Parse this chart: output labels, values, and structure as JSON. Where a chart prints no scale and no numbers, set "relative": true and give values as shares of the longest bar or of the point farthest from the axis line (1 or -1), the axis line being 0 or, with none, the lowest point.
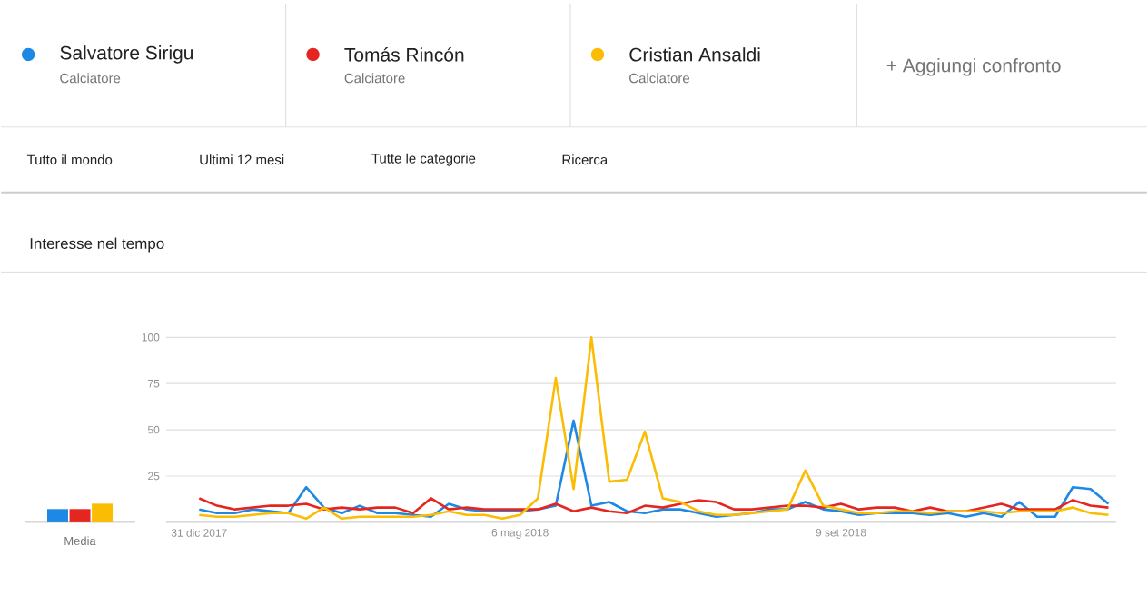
{
  "chart_data": [
    {
      "type": "bar",
      "relative": true,
      "categories": [
        "Media"
      ],
      "series": [
        {
          "color": "#1e88e5",
          "values": [
            0.71
          ]
        },
        {
          "color": "#e52620",
          "values": [
            0.71
          ]
        },
        {
          "color": "#fbbc04",
          "values": [
            1
          ]
        }
      ]
    },
    {
      "type": "line",
      "title": "Interesse nel tempo",
      "legend": "top",
      "grid": "y",
      "marker": "none",
      "line_style": "solid",
      "x": [
        "2017-12-31",
        "2018-01-07",
        "2018-01-14",
        "2018-01-21",
        "2018-01-28",
        "2018-02-04",
        "2018-02-11",
        "2018-02-18",
        "2018-02-25",
        "2018-03-04",
        "2018-03-11",
        "2018-03-18",
        "2018-03-25",
        "2018-04-01",
        "2018-04-08",
        "2018-04-15",
        "2018-04-22",
        "2018-04-29",
        "2018-05-06",
        "2018-05-13",
        "2018-05-20",
        "2018-05-27",
        "2018-06-03",
        "2018-06-10",
        "2018-06-17",
        "2018-06-24",
        "2018-07-01",
        "2018-07-08",
        "2018-07-15",
        "2018-07-22",
        "2018-07-29",
        "2018-08-05",
        "2018-08-12",
        "2018-08-19",
        "2018-08-26",
        "2018-09-02",
        "2018-09-09",
        "2018-09-16",
        "2018-09-23",
        "2018-09-30",
        "2018-10-07",
        "2018-10-14",
        "2018-10-21",
        "2018-10-28",
        "2018-11-04",
        "2018-11-11",
        "2018-11-18",
        "2018-11-25",
        "2018-12-02",
        "2018-12-09",
        "2018-12-16",
        "2018-12-23"
      ],
      "xlim": [
        "2017-12-18",
        "2018-12-26"
      ],
      "xticks": [
        {
          "value": "2017-12-31",
          "label": "31 dic 2017"
        },
        {
          "value": "2018-05-06",
          "label": "6 mag 2018"
        },
        {
          "value": "2018-09-09",
          "label": "9 set 2018"
        }
      ],
      "ylim": [
        0,
        100
      ],
      "yticks": [
        25,
        50,
        75,
        100
      ],
      "series": [
        {
          "name": "Salvatore Sirigu",
          "color": "#1e88e5",
          "values": [
            7,
            5,
            5,
            7,
            6,
            5,
            19,
            8,
            5,
            9,
            5,
            5,
            4,
            3,
            10,
            7,
            6,
            6,
            6,
            7,
            9,
            55,
            9,
            11,
            6,
            5,
            7,
            7,
            5,
            3,
            4,
            5,
            7,
            7,
            11,
            7,
            6,
            4,
            5,
            5,
            5,
            4,
            5,
            3,
            5,
            3,
            11,
            3,
            3,
            19,
            18,
            10
          ]
        },
        {
          "name": "Tomás Rincón",
          "color": "#e52620",
          "values": [
            13,
            9,
            7,
            8,
            9,
            9,
            10,
            7,
            8,
            7,
            8,
            8,
            5,
            13,
            7,
            8,
            7,
            7,
            7,
            7,
            10,
            6,
            8,
            6,
            5,
            9,
            8,
            10,
            12,
            11,
            7,
            7,
            8,
            9,
            9,
            8,
            10,
            7,
            8,
            8,
            6,
            8,
            6,
            6,
            8,
            10,
            7,
            7,
            7,
            12,
            9,
            8
          ]
        },
        {
          "name": "Cristian Ansaldi",
          "color": "#fbbc04",
          "values": [
            4,
            3,
            3,
            4,
            5,
            5,
            2,
            8,
            2,
            3,
            3,
            3,
            3,
            4,
            6,
            4,
            4,
            2,
            4,
            13,
            78,
            18,
            100,
            22,
            23,
            49,
            13,
            11,
            6,
            4,
            4,
            5,
            6,
            7,
            28,
            9,
            7,
            5,
            5,
            6,
            6,
            5,
            6,
            6,
            6,
            5,
            6,
            6,
            6,
            8,
            5,
            4
          ]
        }
      ],
      "annotations": [
        "Calciatore",
        "Calciatore",
        "Calciatore",
        "+ Aggiungi confronto",
        "Tutto il mondo",
        "Ultimi 12 mesi",
        "Tutte le categorie",
        "Ricerca"
      ]
    }
  ]
}
